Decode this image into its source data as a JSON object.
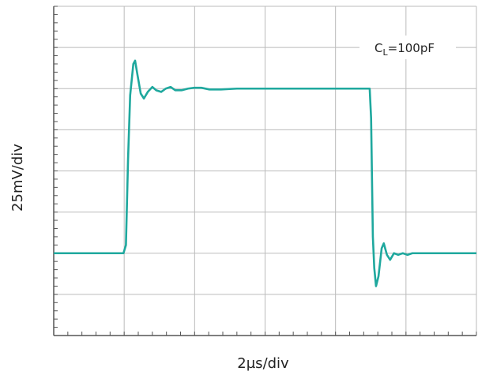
{
  "chart_data": {
    "type": "line",
    "xlabel": "2µs/div",
    "ylabel": "25mV/div",
    "annotation": {
      "text": "C",
      "subscript": "L",
      "suffix": "=100pF"
    },
    "xlim": [
      0,
      12
    ],
    "ylim": [
      0,
      200
    ],
    "xticks": [
      0,
      2,
      4,
      6,
      8,
      10,
      12
    ],
    "yticks": [
      0,
      25,
      50,
      75,
      100,
      125,
      150,
      175,
      200
    ],
    "grid": true,
    "x": [
      0,
      1.98,
      2.05,
      2.11,
      2.17,
      2.26,
      2.31,
      2.38,
      2.47,
      2.56,
      2.67,
      2.8,
      2.91,
      3.05,
      3.18,
      3.32,
      3.45,
      3.63,
      3.81,
      3.99,
      4.19,
      4.42,
      4.75,
      5.2,
      8.97,
      9.01,
      9.06,
      9.1,
      9.15,
      9.22,
      9.31,
      9.37,
      9.46,
      9.55,
      9.66,
      9.78,
      9.91,
      10.04,
      10.18,
      10.36,
      12
    ],
    "series": [
      {
        "color": "#1fa89e",
        "values": [
          50,
          50,
          55,
          107,
          146,
          165,
          167,
          158,
          147,
          144,
          148,
          151,
          149,
          148,
          150,
          151,
          149,
          149,
          150,
          150.5,
          150.5,
          149.5,
          149.5,
          150,
          150,
          132,
          60,
          41,
          30,
          36,
          53,
          56,
          49,
          46,
          50,
          49,
          50,
          49,
          50,
          50,
          50
        ]
      }
    ]
  }
}
